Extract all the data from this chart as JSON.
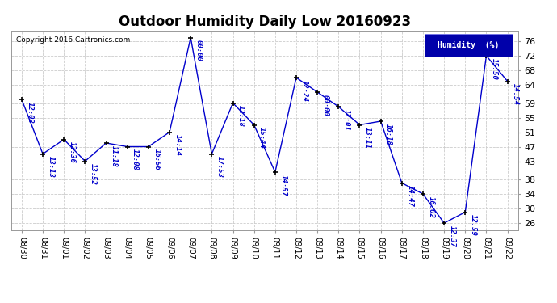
{
  "title": "Outdoor Humidity Daily Low 20160923",
  "copyright_text": "Copyright 2016 Cartronics.com",
  "legend_label": "Humidity  (%)",
  "ylabel_ticks": [
    26,
    30,
    34,
    38,
    43,
    47,
    51,
    55,
    59,
    64,
    68,
    72,
    76
  ],
  "xlabels": [
    "08/30",
    "08/31",
    "09/01",
    "09/02",
    "09/03",
    "09/04",
    "09/05",
    "09/06",
    "09/07",
    "09/08",
    "09/09",
    "09/10",
    "09/11",
    "09/12",
    "09/13",
    "09/14",
    "09/15",
    "09/16",
    "09/17",
    "09/18",
    "09/19",
    "09/20",
    "09/21",
    "09/22"
  ],
  "x_indices": [
    0,
    1,
    2,
    3,
    4,
    5,
    6,
    7,
    8,
    9,
    10,
    11,
    12,
    13,
    14,
    15,
    16,
    17,
    18,
    19,
    20,
    21,
    22,
    23
  ],
  "y_values": [
    60,
    45,
    49,
    43,
    48,
    47,
    47,
    51,
    77,
    45,
    59,
    53,
    40,
    66,
    62,
    58,
    53,
    54,
    37,
    34,
    26,
    29,
    72,
    65
  ],
  "point_labels": [
    "12:03",
    "13:13",
    "12:36",
    "13:52",
    "11:18",
    "12:08",
    "16:56",
    "14:14",
    "00:00",
    "17:53",
    "12:18",
    "15:44",
    "14:57",
    "12:24",
    "00:00",
    "12:01",
    "13:11",
    "16:18",
    "14:47",
    "16:02",
    "12:37",
    "12:59",
    "15:50",
    "14:54"
  ],
  "line_color": "#0000cc",
  "marker_color": "#000000",
  "bg_color": "#ffffff",
  "plot_bg_color": "#ffffff",
  "grid_color": "#cccccc",
  "title_fontsize": 12,
  "label_fontsize": 7,
  "point_label_fontsize": 6.5,
  "ylim_min": 24,
  "ylim_max": 79
}
